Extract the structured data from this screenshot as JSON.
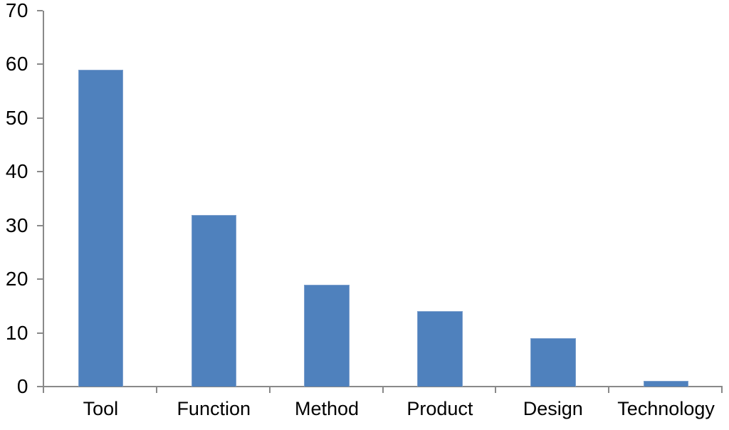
{
  "chart_data": {
    "type": "bar",
    "title": "",
    "categories": [
      "Tool",
      "Function",
      "Method",
      "Product",
      "Design",
      "Technology"
    ],
    "values": [
      59,
      32,
      19,
      14,
      9,
      1
    ],
    "xlabel": "",
    "ylabel": "",
    "ylim": [
      0,
      70
    ],
    "ytick_interval": 10,
    "ytick_labels": [
      "0",
      "10",
      "20",
      "30",
      "40",
      "50",
      "60",
      "70"
    ],
    "grid": false,
    "legend": false,
    "bar_gap_fraction": 0.6,
    "colors": {
      "bar": "#4F81BD",
      "axis": "#898989",
      "text": "#000000",
      "background": "#FFFFFF"
    }
  }
}
